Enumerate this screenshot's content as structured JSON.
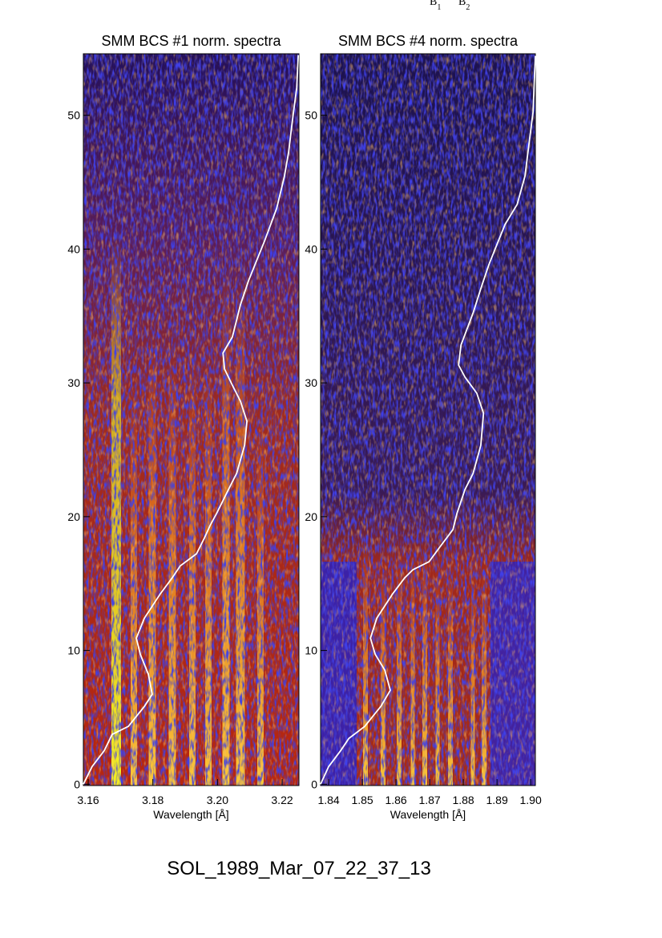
{
  "chart_data": [
    {
      "type": "line",
      "title": "SMM BCS #1 norm. spectra",
      "x_label": "Wavelength [Å]",
      "xlim": [
        3.1585,
        3.2252
      ],
      "ylim": [
        -0.1,
        54.6
      ],
      "xticks": [
        3.16,
        3.18,
        {
          "value": 3.2,
          "label": "3.20"
        },
        3.22
      ],
      "yticks": [
        0,
        10,
        20,
        30,
        40,
        50
      ],
      "series": [
        {
          "color": "#ffffff",
          "x": [
            3.1585,
            3.1612,
            3.165,
            3.1674,
            3.1724,
            3.1774,
            3.1798,
            3.1786,
            3.1761,
            3.1749,
            3.1774,
            3.1823,
            3.186,
            3.1885,
            3.1935,
            3.196,
            3.1977,
            3.1997,
            3.2034,
            3.2059,
            3.2084,
            3.2091,
            3.2071,
            3.2046,
            3.2022,
            3.2017,
            3.2046,
            3.2071,
            3.2096,
            3.2121,
            3.2146,
            3.2183,
            3.2207,
            3.222,
            3.2232,
            3.2245,
            3.225
          ],
          "values": [
            0,
            1.32,
            2.52,
            3.72,
            4.32,
            5.82,
            6.72,
            8.22,
            9.72,
            10.92,
            12.42,
            14.23,
            15.43,
            16.33,
            17.23,
            18.43,
            19.33,
            20.23,
            22.03,
            23.23,
            25.33,
            27.13,
            28.63,
            29.83,
            31.03,
            32.23,
            33.43,
            35.83,
            37.64,
            39.14,
            40.64,
            43.04,
            45.44,
            47.24,
            49.64,
            52.04,
            54.5
          ]
        }
      ]
    },
    {
      "type": "line",
      "title": "SMM BCS #4 norm. spectra",
      "x_label": "Wavelength [Å]",
      "xlim": [
        1.8376,
        1.9014
      ],
      "ylim": [
        -0.1,
        54.6
      ],
      "xticks": [
        1.84,
        1.85,
        1.86,
        1.87,
        1.88,
        1.89,
        {
          "value": 1.9,
          "label": "1.90"
        }
      ],
      "yticks": [
        0,
        10,
        20,
        30,
        40,
        50
      ],
      "series": [
        {
          "color": "#ffffff",
          "x": [
            1.8376,
            1.84,
            1.8436,
            1.846,
            1.8507,
            1.8555,
            1.8583,
            1.8567,
            1.8538,
            1.8524,
            1.8543,
            1.859,
            1.8626,
            1.865,
            1.8698,
            1.8733,
            1.8769,
            1.8781,
            1.8805,
            1.8829,
            1.8852,
            1.886,
            1.884,
            1.8805,
            1.8786,
            1.8793,
            1.8829,
            1.8852,
            1.8876,
            1.8895,
            1.8924,
            1.896,
            1.8983,
            1.8995,
            1.9007,
            1.9014
          ],
          "values": [
            0,
            1.32,
            2.52,
            3.42,
            4.32,
            5.82,
            7.02,
            8.52,
            9.72,
            10.92,
            12.42,
            14.23,
            15.43,
            16.03,
            16.63,
            17.83,
            19.03,
            20.23,
            22.03,
            23.23,
            25.33,
            27.73,
            29.23,
            30.43,
            31.33,
            32.83,
            35.23,
            37.04,
            38.84,
            40.04,
            41.84,
            43.34,
            45.44,
            47.84,
            50.24,
            54.44
          ]
        }
      ]
    }
  ],
  "top_labels": [
    {
      "base": "B",
      "sub": "1"
    },
    {
      "base": "B",
      "sub": "2"
    }
  ],
  "footer": "SOL_1989_Mar_07_22_37_13"
}
